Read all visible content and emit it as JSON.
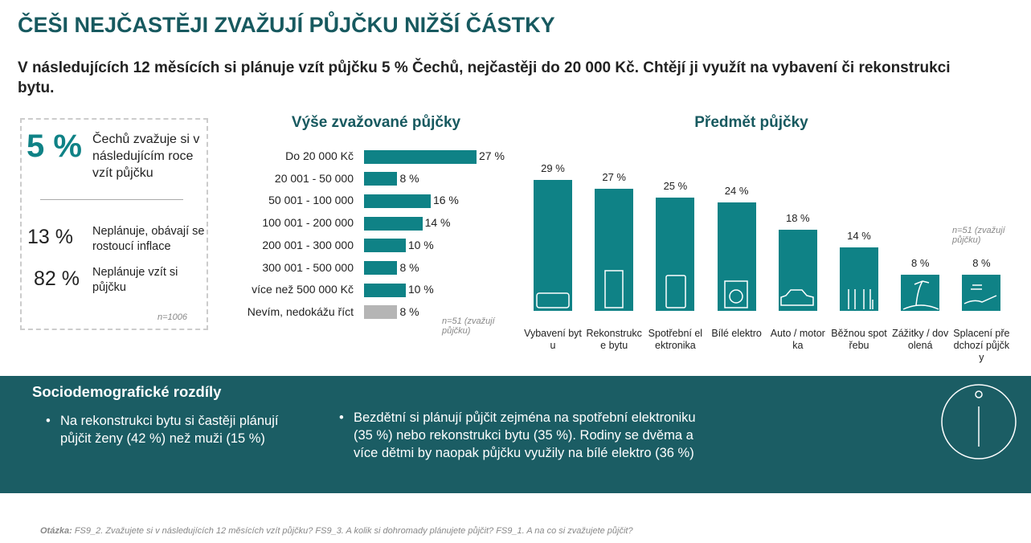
{
  "title": "ČEŠI NEJČASTĚJI ZVAŽUJÍ PŮJČKU NIŽŠÍ ČÁSTKY",
  "subtitle": "V následujících 12 měsících si plánuje vzít půjčku 5 % Čechů, nejčastěji do 20 000 Kč. Chtějí ji využít na vybavení či rekonstrukci bytu.",
  "stats": [
    {
      "value": "5 %",
      "text": "Čechů zvažuje si v následujícím roce vzít půjčku"
    },
    {
      "value": "13 %",
      "text": "Neplánuje, obávají se rostoucí inflace"
    },
    {
      "value": "82 %",
      "text": "Neplánuje vzít si půjčku"
    }
  ],
  "stats_note": "n=1006",
  "chart_data": [
    {
      "type": "hbar",
      "title": "Výše zvažované půjčky",
      "categories": [
        "Do 20 000 Kč",
        "20 001 - 50 000",
        "50 001 - 100 000",
        "100 001 - 200 000",
        "200 001 - 300 000",
        "300 001 - 500 000",
        "více než 500 000 Kč",
        "Nevím, nedokážu říct"
      ],
      "values": [
        27,
        8,
        16,
        14,
        10,
        8,
        10,
        8
      ],
      "value_labels": [
        "27 %",
        "8 %",
        "16 %",
        "14 %",
        "10 %",
        "8 %",
        "10 %",
        "8 %"
      ],
      "colors": [
        "#0f8286",
        "#0f8286",
        "#0f8286",
        "#0f8286",
        "#0f8286",
        "#0f8286",
        "#0f8286",
        "#b5b5b5"
      ],
      "note": "n=51 (zvažují půjčku)"
    },
    {
      "type": "bar",
      "title": "Předmět půjčky",
      "categories": [
        "Vybavení bytu",
        "Rekonstrukce bytu",
        "Spotřební elektronika",
        "Bílé elektro",
        "Auto / motorka",
        "Běžnou spotřebu",
        "Zážitky / dovolená",
        "Splacení předchozí půjčky"
      ],
      "values": [
        29,
        27,
        25,
        24,
        18,
        14,
        8,
        8
      ],
      "value_labels": [
        "29 %",
        "27 %",
        "25 %",
        "24 %",
        "18 %",
        "14 %",
        "8 %",
        "8 %"
      ],
      "color": "#0f8286",
      "note": "n=51 (zvažují půjčku)"
    }
  ],
  "panel": {
    "title": "Sociodemografické rozdíly",
    "bullets": [
      "Na rekonstrukci bytu si častěji plánují půjčit ženy (42 %) než muži (15 %)",
      "Bezdětní si plánují půjčit zejména na spotřební elektroniku (35 %) nebo rekonstrukci bytu (35 %). Rodiny se dvěma a více dětmi by naopak půjčku využily na bílé elektro (36 %)"
    ]
  },
  "footer": {
    "label": "Otázka:",
    "text": "FS9_2. Zvažujete si v následujících 12 měsících vzít půjčku? FS9_3. A kolik si dohromady plánujete půjčit? FS9_1. A na co si zvažujete půjčit?"
  }
}
